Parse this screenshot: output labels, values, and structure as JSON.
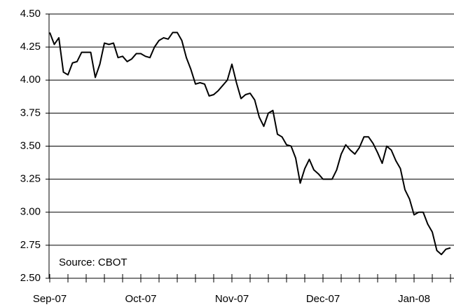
{
  "chart_data": {
    "type": "line",
    "annotation": "Source: CBOT",
    "categories": [
      "Sep-07",
      null,
      null,
      null,
      null,
      null,
      null,
      null,
      null,
      null,
      null,
      null,
      null,
      null,
      null,
      null,
      null,
      null,
      null,
      null,
      "Oct-07",
      null,
      null,
      null,
      null,
      null,
      null,
      null,
      null,
      null,
      null,
      null,
      null,
      null,
      null,
      null,
      null,
      null,
      null,
      null,
      "Nov-07",
      null,
      null,
      null,
      null,
      null,
      null,
      null,
      null,
      null,
      null,
      null,
      null,
      null,
      null,
      null,
      null,
      null,
      null,
      null,
      "Dec-07",
      null,
      null,
      null,
      null,
      null,
      null,
      null,
      null,
      null,
      null,
      null,
      null,
      null,
      null,
      null,
      null,
      null,
      null,
      null,
      "Jan-08",
      null,
      null,
      null,
      null,
      null,
      null,
      null,
      null
    ],
    "values": [
      4.36,
      4.27,
      4.32,
      4.06,
      4.04,
      4.13,
      4.14,
      4.21,
      4.21,
      4.21,
      4.02,
      4.12,
      4.28,
      4.27,
      4.28,
      4.17,
      4.18,
      4.14,
      4.16,
      4.2,
      4.2,
      4.18,
      4.17,
      4.25,
      4.3,
      4.32,
      4.31,
      4.36,
      4.36,
      4.3,
      4.17,
      4.08,
      3.97,
      3.98,
      3.97,
      3.88,
      3.89,
      3.92,
      3.96,
      4.0,
      4.12,
      3.98,
      3.86,
      3.89,
      3.9,
      3.85,
      3.72,
      3.65,
      3.75,
      3.77,
      3.59,
      3.57,
      3.51,
      3.5,
      3.41,
      3.22,
      3.33,
      3.4,
      3.32,
      3.29,
      3.25,
      3.25,
      3.25,
      3.32,
      3.44,
      3.51,
      3.47,
      3.44,
      3.49,
      3.57,
      3.57,
      3.52,
      3.45,
      3.37,
      3.5,
      3.47,
      3.39,
      3.33,
      3.17,
      3.1,
      2.98,
      3.0,
      3.0,
      2.91,
      2.85,
      2.71,
      2.68,
      2.72,
      2.73
    ],
    "color": "#000000",
    "ylim": [
      2.5,
      4.5
    ],
    "yticks": [
      {
        "value": 2.5,
        "label": "2.50"
      },
      {
        "value": 2.75,
        "label": "2.75"
      },
      {
        "value": 3.0,
        "label": "3.00"
      },
      {
        "value": 3.25,
        "label": "3.25"
      },
      {
        "value": 3.5,
        "label": "3.50"
      },
      {
        "value": 3.75,
        "label": "3.75"
      },
      {
        "value": 4.0,
        "label": "4.00"
      },
      {
        "value": 4.25,
        "label": "4.25"
      },
      {
        "value": 4.5,
        "label": "4.50"
      }
    ],
    "grid": true
  }
}
